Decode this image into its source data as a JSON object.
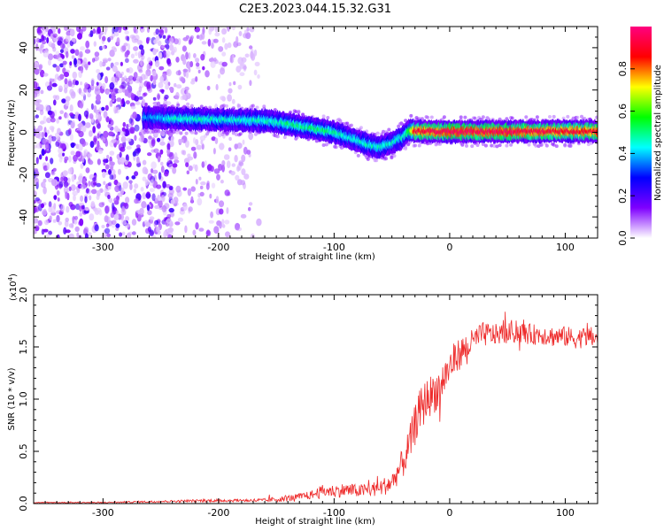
{
  "chart_data": [
    {
      "type": "heatmap",
      "title": "C2E3.2023.044.15.32.G31",
      "xlabel": "Height of straight line (km)",
      "ylabel": "Frequency (Hz)",
      "xlim": [
        -360,
        128
      ],
      "ylim": [
        -50,
        50
      ],
      "xticks": [
        -300,
        -200,
        -100,
        0,
        100
      ],
      "yticks": [
        -40,
        -20,
        0,
        20,
        40
      ],
      "colorbar": {
        "label": "Normalized spectral amplitude",
        "range": [
          0,
          1
        ],
        "ticks": [
          0.0,
          0.2,
          0.4,
          0.6,
          0.8
        ],
        "tick_labels": [
          "0.0",
          "0.2",
          "0.4",
          "0.6",
          "0.8"
        ],
        "colors": [
          "#ffffff",
          "#7f00ff",
          "#0000ff",
          "#00ffff",
          "#00ff00",
          "#ffff00",
          "#ff0000",
          "#ff0080"
        ]
      },
      "ridge": {
        "x": [
          -265,
          -240,
          -200,
          -160,
          -140,
          -120,
          -100,
          -90,
          -80,
          -70,
          -60,
          -50,
          -40,
          -35,
          -30,
          0,
          50,
          100,
          128
        ],
        "y": [
          7,
          6.5,
          6,
          5.5,
          4,
          2,
          0,
          -2,
          -4,
          -6,
          -7,
          -5,
          -2,
          1,
          0.5,
          0.3,
          0.3,
          0.5,
          0.5
        ],
        "amplitude": [
          0.35,
          0.45,
          0.45,
          0.45,
          0.5,
          0.5,
          0.5,
          0.45,
          0.45,
          0.45,
          0.45,
          0.45,
          0.45,
          0.6,
          0.9,
          0.95,
          0.95,
          0.9,
          0.9
        ]
      },
      "noise_region_x": [
        -360,
        -165
      ],
      "grid": false
    },
    {
      "type": "line",
      "title": "",
      "xlabel": "Height of straight line (km)",
      "ylabel": "SNR (10 * v/v)",
      "y_multiplier": "(x10",
      "y_multiplier_exp": "4",
      "y_multiplier_close": ")",
      "xlim": [
        -360,
        128
      ],
      "ylim": [
        0,
        2.0
      ],
      "xticks": [
        -300,
        -200,
        -100,
        0,
        100
      ],
      "yticks": [
        0.0,
        0.5,
        1.0,
        1.5,
        2.0
      ],
      "ytick_labels": [
        "0.0",
        "0.5",
        "1.0",
        "1.5",
        "2.0"
      ],
      "color": "#ee2b2b",
      "series": [
        {
          "x": [
            -360,
            -300,
            -250,
            -200,
            -180,
            -160,
            -140,
            -120,
            -110,
            -100,
            -90,
            -80,
            -70,
            -60,
            -50,
            -45,
            -40,
            -35,
            -30,
            -25,
            -20,
            -15,
            -10,
            -5,
            0,
            5,
            10,
            15,
            20,
            25,
            30,
            40,
            50,
            60,
            70,
            80,
            90,
            100,
            110,
            120,
            128
          ],
          "y": [
            0.01,
            0.01,
            0.02,
            0.03,
            0.03,
            0.03,
            0.05,
            0.08,
            0.12,
            0.12,
            0.13,
            0.12,
            0.13,
            0.15,
            0.2,
            0.3,
            0.4,
            0.55,
            0.75,
            0.9,
            1.0,
            1.05,
            1.1,
            1.2,
            1.3,
            1.4,
            1.45,
            1.5,
            1.55,
            1.6,
            1.62,
            1.62,
            1.63,
            1.64,
            1.62,
            1.62,
            1.6,
            1.6,
            1.58,
            1.6,
            1.58
          ],
          "noise": [
            0.005,
            0.006,
            0.01,
            0.015,
            0.015,
            0.02,
            0.03,
            0.04,
            0.06,
            0.06,
            0.07,
            0.06,
            0.07,
            0.08,
            0.1,
            0.12,
            0.15,
            0.18,
            0.2,
            0.22,
            0.2,
            0.2,
            0.2,
            0.18,
            0.18,
            0.16,
            0.15,
            0.14,
            0.12,
            0.12,
            0.12,
            0.1,
            0.1,
            0.1,
            0.1,
            0.1,
            0.1,
            0.1,
            0.1,
            0.1,
            0.1
          ]
        }
      ],
      "grid": false
    }
  ]
}
